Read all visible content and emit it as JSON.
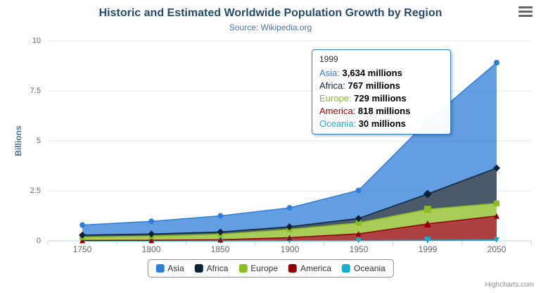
{
  "chart_data": {
    "type": "area",
    "stacking": "normal",
    "title": "Historic and Estimated Worldwide Population Growth by Region",
    "subtitle": "Source: Wikipedia.org",
    "xlabel": "",
    "ylabel": "Billions",
    "ylim": [
      0,
      10
    ],
    "yticks": [
      "0",
      "2.5",
      "5",
      "7.5",
      "10"
    ],
    "categories": [
      "1750",
      "1800",
      "1850",
      "1900",
      "1950",
      "1999",
      "2050"
    ],
    "unit": "millions",
    "grid": true,
    "legend_position": "bottom",
    "series": [
      {
        "name": "Asia",
        "color": "#2f7ed8",
        "marker": "circle",
        "values": [
          502,
          635,
          809,
          947,
          1402,
          3634,
          5268
        ]
      },
      {
        "name": "Africa",
        "color": "#0d233a",
        "marker": "diamond",
        "values": [
          106,
          107,
          111,
          133,
          221,
          767,
          1766
        ]
      },
      {
        "name": "Europe",
        "color": "#8bbc21",
        "marker": "square",
        "values": [
          163,
          203,
          276,
          408,
          547,
          729,
          628
        ]
      },
      {
        "name": "America",
        "color": "#910000",
        "marker": "triangle",
        "values": [
          18,
          31,
          54,
          156,
          339,
          818,
          1201
        ]
      },
      {
        "name": "Oceania",
        "color": "#1aadce",
        "marker": "triangle-down",
        "values": [
          2,
          2,
          2,
          6,
          13,
          30,
          46
        ]
      }
    ],
    "hover": {
      "series_index": 0,
      "point_index": 5
    }
  },
  "tooltip": {
    "header": "1999",
    "border_color": "#2f7ed8",
    "rows": [
      {
        "label": "Asia:",
        "color": "#2f7ed8",
        "value": "3,634 millions"
      },
      {
        "label": "Africa:",
        "color": "#0d233a",
        "value": "767 millions"
      },
      {
        "label": "Europe:",
        "color": "#8bbc21",
        "value": "729 millions"
      },
      {
        "label": "America:",
        "color": "#910000",
        "value": "818 millions"
      },
      {
        "label": "Oceania:",
        "color": "#1aadce",
        "value": "30 millions"
      }
    ]
  },
  "legend": {
    "items": [
      {
        "label": "Asia",
        "color": "#2f7ed8"
      },
      {
        "label": "Africa",
        "color": "#0d233a"
      },
      {
        "label": "Europe",
        "color": "#8bbc21"
      },
      {
        "label": "America",
        "color": "#910000"
      },
      {
        "label": "Oceania",
        "color": "#1aadce"
      }
    ]
  },
  "export_menu": {
    "icon": "hamburger-menu-icon"
  },
  "credits": {
    "text": "Highcharts.com"
  },
  "ui_colors": {
    "title": "#274b6d",
    "subtitle": "#4d759e",
    "axis_label": "#666666",
    "axis_title": "#4d759e",
    "grid_line": "#e6e6e6",
    "axis_line": "#c0d0e0",
    "credits": "#909090",
    "legend_border": "#909090"
  }
}
